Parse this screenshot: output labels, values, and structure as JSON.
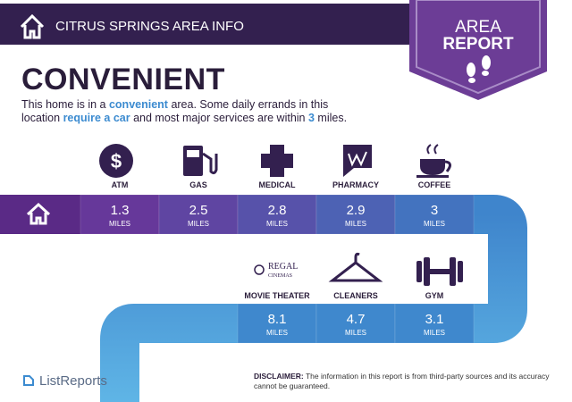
{
  "header": {
    "title": "CITRUS SPRINGS AREA INFO",
    "badge": [
      "AREA",
      "REPORT"
    ]
  },
  "heading": "CONVENIENT",
  "description": [
    "This home is in a ",
    "convenient",
    " area. Some daily errands in this",
    "location ",
    "require a car",
    " and most major services are within ",
    "3",
    " miles."
  ],
  "unit": "MILES",
  "row1": [
    {
      "label": "ATM",
      "distance": "1.3"
    },
    {
      "label": "GAS",
      "distance": "2.5"
    },
    {
      "label": "MEDICAL",
      "distance": "2.8"
    },
    {
      "label": "PHARMACY",
      "distance": "2.9"
    },
    {
      "label": "COFFEE",
      "distance": "3"
    }
  ],
  "row2": [
    {
      "label": "MOVIE THEATER",
      "distance": "8.1",
      "logo": [
        "REGAL",
        "CINEMAS"
      ]
    },
    {
      "label": "CLEANERS",
      "distance": "4.7"
    },
    {
      "label": "GYM",
      "distance": "3.1"
    }
  ],
  "footer": {
    "brand": "ListReports",
    "disclaimer_label": "DISCLAIMER:",
    "disclaimer": "The information in this report is from third-party sources and its accuracy cannot be guaranteed."
  }
}
